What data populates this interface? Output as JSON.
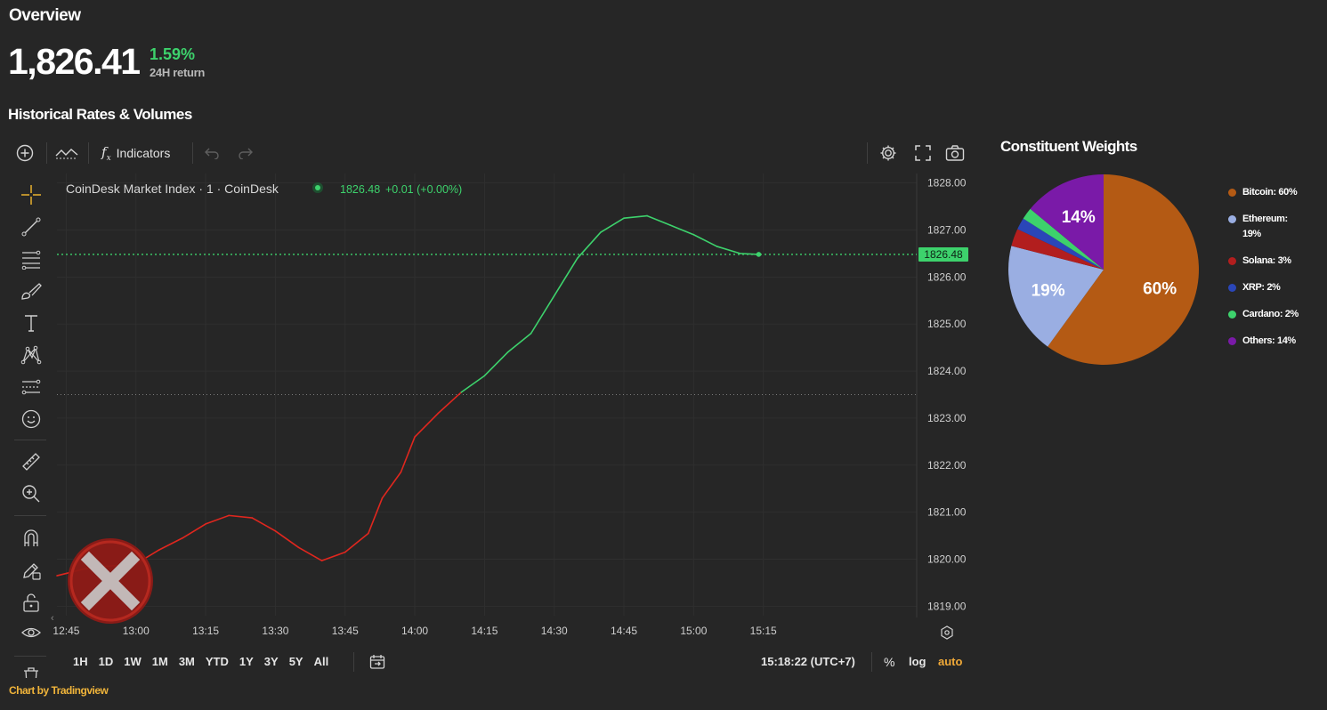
{
  "overview": {
    "title": "Overview",
    "value": "1,826.41",
    "change_pct": "1.59%",
    "change_label": "24H return",
    "section_title": "Historical Rates & Volumes"
  },
  "toolbar": {
    "indicators_label": "Indicators"
  },
  "chart_header": {
    "symbol": "CoinDesk Market Index · 1 · CoinDesk",
    "last": "1826.48",
    "change": "+0.01 (+0.00%)"
  },
  "price_axis": {
    "labels": [
      "1828.00",
      "1827.00",
      "1826.00",
      "1825.00",
      "1824.00",
      "1823.00",
      "1822.00",
      "1821.00",
      "1820.00",
      "1819.00"
    ],
    "current_label": "1826.48"
  },
  "time_axis": {
    "labels": [
      "12:45",
      "13:00",
      "13:15",
      "13:30",
      "13:45",
      "14:00",
      "14:15",
      "14:30",
      "14:45",
      "15:00",
      "15:15"
    ]
  },
  "timeframes": [
    "1H",
    "1D",
    "1W",
    "1M",
    "3M",
    "YTD",
    "1Y",
    "3Y",
    "5Y",
    "All"
  ],
  "status": {
    "clock": "15:18:22 (UTC+7)",
    "percent": "%",
    "log": "log",
    "auto": "auto"
  },
  "credit": "Chart by Tradingview",
  "colors": {
    "up": "#3dd26c",
    "down": "#e0261e",
    "bitcoin": "#b45a14",
    "ethereum": "#9aaee2",
    "solana": "#b21e1e",
    "xrp": "#2a46b8",
    "cardano": "#3dd26c",
    "others": "#7a1aa8"
  },
  "chart_data": [
    {
      "type": "line",
      "title": "CoinDesk Market Index · 1 · CoinDesk",
      "x": [
        "12:43",
        "12:50",
        "13:00",
        "13:05",
        "13:10",
        "13:15",
        "13:20",
        "13:25",
        "13:30",
        "13:35",
        "13:40",
        "13:45",
        "13:50",
        "13:53",
        "13:57",
        "14:00",
        "14:05",
        "14:10",
        "14:15",
        "14:20",
        "14:25",
        "14:30",
        "14:35",
        "14:40",
        "14:45",
        "14:50",
        "14:55",
        "15:00",
        "15:05",
        "15:10",
        "15:14"
      ],
      "y": [
        1819.65,
        1819.82,
        1819.9,
        1820.2,
        1820.45,
        1820.75,
        1820.93,
        1820.88,
        1820.6,
        1820.25,
        1819.97,
        1820.15,
        1820.55,
        1821.3,
        1821.85,
        1822.6,
        1823.1,
        1823.55,
        1823.9,
        1824.4,
        1824.8,
        1825.6,
        1826.4,
        1826.95,
        1827.25,
        1827.3,
        1827.1,
        1826.9,
        1826.65,
        1826.5,
        1826.48
      ],
      "series": [
        {
          "name": "CoinDesk Market Index",
          "up_color": "#3dd26c",
          "down_color": "#e0261e"
        }
      ],
      "ylim": [
        1818.8,
        1828.2
      ],
      "reference_line": 1823.5,
      "current_value": 1826.48,
      "y_ticks": [
        1828,
        1827,
        1826,
        1825,
        1824,
        1823,
        1822,
        1821,
        1820,
        1819
      ],
      "grid": true
    },
    {
      "type": "pie",
      "title": "Constituent Weights",
      "labels": [
        "Bitcoin",
        "Ethereum",
        "Solana",
        "XRP",
        "Cardano",
        "Others"
      ],
      "values": [
        60,
        19,
        3,
        2,
        2,
        14
      ],
      "slice_labels": [
        "60%",
        "19%",
        "",
        "",
        "",
        "14%"
      ],
      "legend": [
        "Bitcoin: 60%",
        "Ethereum: 19%",
        "Solana: 3%",
        "XRP: 2%",
        "Cardano: 2%",
        "Others: 14%"
      ],
      "legend_position": "right"
    }
  ]
}
